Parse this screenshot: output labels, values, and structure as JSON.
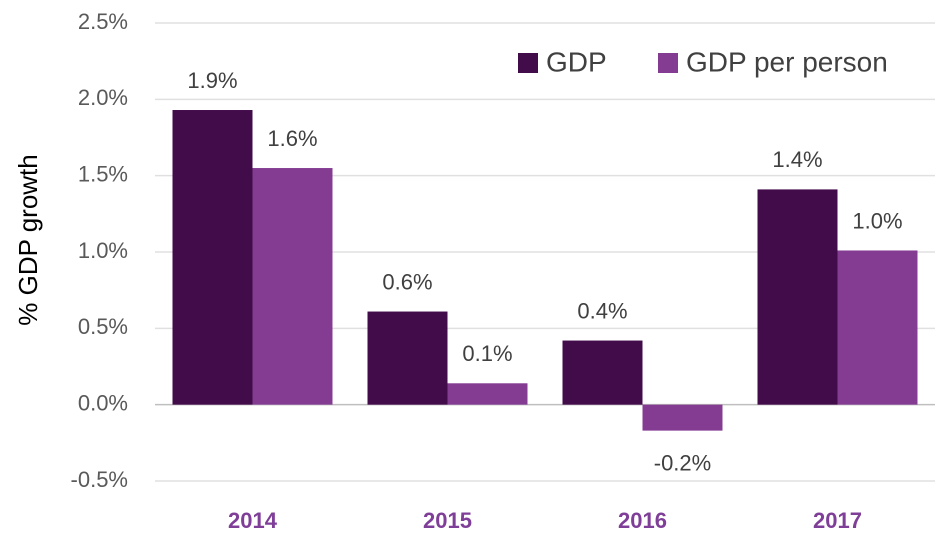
{
  "chart_data": {
    "type": "bar",
    "categories": [
      "2014",
      "2015",
      "2016",
      "2017"
    ],
    "series": [
      {
        "name": "GDP",
        "color": "#420b4a",
        "values": [
          1.93,
          0.61,
          0.42,
          1.41
        ],
        "value_labels": [
          "1.9%",
          "0.6%",
          "0.4%",
          "1.4%"
        ]
      },
      {
        "name": "GDP per person",
        "color": "#843c93",
        "values": [
          1.55,
          0.14,
          -0.17,
          1.01
        ],
        "value_labels": [
          "1.6%",
          "0.1%",
          "-0.2%",
          "1.0%"
        ]
      }
    ],
    "y_label": "% GDP growth",
    "ylim": [
      -0.5,
      2.5
    ],
    "yticks": [
      {
        "value": -0.5,
        "label": "-0.5%"
      },
      {
        "value": 0,
        "label": "0.0%"
      },
      {
        "value": 0.5,
        "label": "0.5%"
      },
      {
        "value": 1,
        "label": "1.0%"
      },
      {
        "value": 1.5,
        "label": "1.5%"
      },
      {
        "value": 2,
        "label": "2.0%"
      },
      {
        "value": 2.5,
        "label": "2.5%"
      }
    ],
    "grid": true,
    "legend": "top-right"
  }
}
